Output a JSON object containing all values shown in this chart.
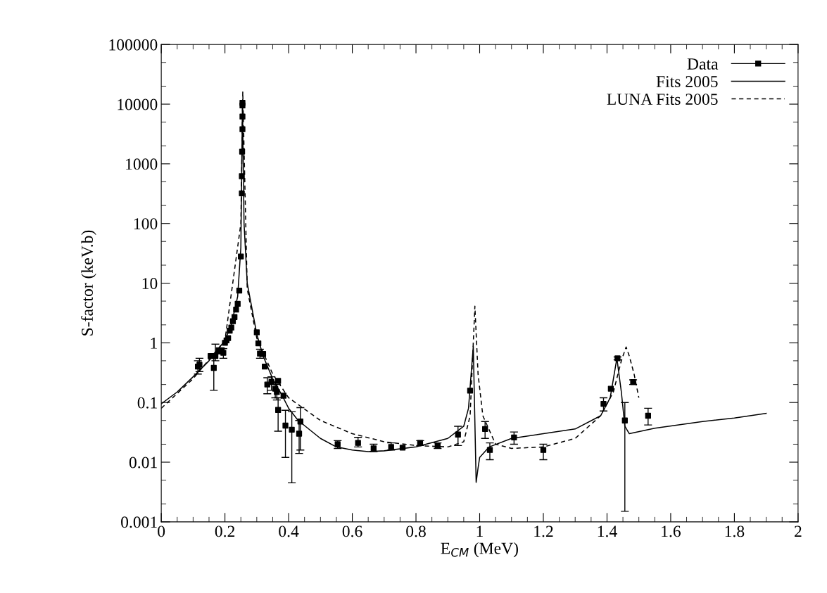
{
  "chart_data": {
    "type": "scatter",
    "xlabel": "E$_{CM}$ (MeV)",
    "ylabel": "S-factor (keV.b)",
    "log": "y",
    "xlim": [
      0,
      2
    ],
    "xticks": [
      0,
      0.2,
      0.4,
      0.6,
      0.8,
      1,
      1.2,
      1.4,
      1.6,
      1.8,
      2
    ],
    "ylim": [
      0.001,
      100000
    ],
    "yticks": [
      0.001,
      0.01,
      0.1,
      1,
      10,
      100,
      1000,
      10000,
      100000
    ],
    "grid": false,
    "legend": "top right",
    "series": [
      {
        "name": "Data",
        "color": "#000000",
        "marker": "square",
        "x": [
          0.115,
          0.12,
          0.155,
          0.165,
          0.17,
          0.18,
          0.185,
          0.19,
          0.195,
          0.2,
          0.205,
          0.21,
          0.215,
          0.22,
          0.225,
          0.23,
          0.235,
          0.24,
          0.245,
          0.25,
          0.253,
          0.253,
          0.254,
          0.255,
          0.255,
          0.255,
          0.255,
          0.3,
          0.305,
          0.31,
          0.32,
          0.325,
          0.333,
          0.346,
          0.358,
          0.367,
          0.363,
          0.367,
          0.384,
          0.39,
          0.41,
          0.433,
          0.437,
          0.554,
          0.618,
          0.667,
          0.722,
          0.758,
          0.813,
          0.868,
          0.932,
          0.97,
          1.017,
          1.032,
          1.108,
          1.2,
          1.389,
          1.412,
          1.433,
          1.456,
          1.482,
          1.529
        ],
        "values": [
          0.4,
          0.43,
          0.6,
          0.38,
          0.6,
          0.75,
          0.72,
          0.75,
          0.68,
          1.0,
          1.1,
          1.2,
          1.6,
          1.8,
          2.3,
          2.7,
          3.6,
          4.5,
          7.5,
          28,
          320,
          620,
          1600,
          3800,
          6200,
          9500,
          10500,
          1.5,
          0.98,
          0.66,
          0.65,
          0.4,
          0.2,
          0.22,
          0.17,
          0.23,
          0.15,
          0.075,
          0.13,
          0.041,
          0.035,
          0.03,
          0.048,
          0.02,
          0.021,
          0.017,
          0.018,
          0.0175,
          0.021,
          0.019,
          0.029,
          0.158,
          0.036,
          0.016,
          0.026,
          0.016,
          0.095,
          0.17,
          0.55,
          0.05,
          0.22,
          0.06
        ],
        "errors": [
          [
            0.3,
            0.5
          ],
          [
            0.33,
            0.55
          ],
          null,
          [
            0.16,
            0.55
          ],
          [
            0.5,
            0.95
          ],
          null,
          null,
          null,
          [
            0.55,
            0.8
          ],
          null,
          null,
          null,
          null,
          null,
          null,
          null,
          null,
          null,
          null,
          null,
          null,
          null,
          null,
          null,
          null,
          null,
          null,
          null,
          null,
          [
            0.55,
            0.78
          ],
          null,
          null,
          [
            0.14,
            0.26
          ],
          [
            0.16,
            0.27
          ],
          [
            0.12,
            0.22
          ],
          null,
          [
            0.11,
            0.2
          ],
          [
            0.033,
            0.12
          ],
          null,
          [
            0.012,
            0.074
          ],
          [
            0.0045,
            0.07
          ],
          [
            0.014,
            0.05
          ],
          [
            0.016,
            0.082
          ],
          [
            0.017,
            0.023
          ],
          [
            0.018,
            0.026
          ],
          [
            0.015,
            0.02
          ],
          [
            0.016,
            0.021
          ],
          null,
          [
            0.019,
            0.023
          ],
          [
            0.017,
            0.021
          ],
          [
            0.019,
            0.04
          ],
          null,
          [
            0.025,
            0.048
          ],
          [
            0.011,
            0.021
          ],
          [
            0.02,
            0.032
          ],
          [
            0.011,
            0.02
          ],
          [
            0.072,
            0.12
          ],
          null,
          [
            0.52,
            0.58
          ],
          [
            0.0015,
            0.1
          ],
          [
            0.2,
            0.24
          ],
          [
            0.042,
            0.08
          ]
        ]
      },
      {
        "name": "Fits 2005",
        "type": "line",
        "color": "#000000",
        "line_style": "solid",
        "marker": "none",
        "x": [
          0,
          0.05,
          0.1,
          0.15,
          0.2,
          0.22,
          0.24,
          0.25,
          0.255,
          0.26,
          0.27,
          0.3,
          0.32,
          0.35,
          0.38,
          0.4,
          0.43,
          0.5,
          0.55,
          0.6,
          0.65,
          0.7,
          0.8,
          0.9,
          0.95,
          0.965,
          0.975,
          0.98,
          0.989,
          0.995,
          1.0,
          1.03,
          1.1,
          1.2,
          1.3,
          1.38,
          1.41,
          1.431,
          1.445,
          1.456,
          1.47,
          1.55,
          1.7,
          1.8,
          1.9
        ],
        "values": [
          0.095,
          0.15,
          0.27,
          0.5,
          1.1,
          2,
          6,
          40,
          10000,
          100,
          10,
          1.4,
          0.6,
          0.25,
          0.13,
          0.08,
          0.05,
          0.025,
          0.018,
          0.016,
          0.015,
          0.0155,
          0.018,
          0.025,
          0.04,
          0.08,
          0.4,
          0.87,
          0.0046,
          0.008,
          0.012,
          0.018,
          0.025,
          0.03,
          0.036,
          0.06,
          0.12,
          0.55,
          0.15,
          0.04,
          0.03,
          0.037,
          0.048,
          0.055,
          0.066
        ]
      },
      {
        "name": "LUNA Fits 2005",
        "type": "line",
        "color": "#000000",
        "line_style": "dashed",
        "marker": "none",
        "x": [
          0,
          0.1,
          0.2,
          0.25,
          0.256,
          0.27,
          0.3,
          0.35,
          0.4,
          0.5,
          0.6,
          0.7,
          0.8,
          0.9,
          0.95,
          0.97,
          0.985,
          0.995,
          1.01,
          1.05,
          1.1,
          1.2,
          1.3,
          1.38,
          1.42,
          1.445,
          1.46,
          1.47,
          1.485,
          1.5
        ],
        "values": [
          0.08,
          0.25,
          1.1,
          100,
          16000,
          8,
          1.2,
          0.3,
          0.12,
          0.05,
          0.03,
          0.022,
          0.019,
          0.018,
          0.022,
          0.06,
          4.1,
          0.3,
          0.06,
          0.02,
          0.017,
          0.018,
          0.025,
          0.06,
          0.15,
          0.5,
          0.85,
          0.6,
          0.3,
          0.12
        ]
      }
    ]
  }
}
